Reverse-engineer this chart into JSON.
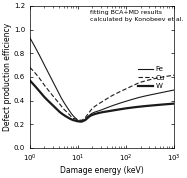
{
  "title_text": "fitting BCA+MD results\ncalculated by Konobeev et al.",
  "xlabel": "Damage energy (keV)",
  "ylabel": "Defect production efficiency",
  "xlim_log": [
    1.0,
    1000.0
  ],
  "ylim": [
    0,
    1.2
  ],
  "yticks": [
    0,
    0.2,
    0.4,
    0.6,
    0.8,
    1.0,
    1.2
  ],
  "background_color": "#ffffff",
  "line_color": "#1a1a1a",
  "legend_entries": [
    "Fe",
    "Cu",
    "W"
  ],
  "Fe_x": [
    1.0,
    1.5,
    2.0,
    3.0,
    4.0,
    5.0,
    6.0,
    7.0,
    8.0,
    9.0,
    10.0,
    11.0,
    12.0,
    13.0,
    14.0,
    15.0,
    16.0,
    17.0,
    20.0,
    30.0,
    50.0,
    100.0,
    200.0,
    500.0,
    1000.0
  ],
  "Fe_y": [
    0.93,
    0.8,
    0.7,
    0.56,
    0.46,
    0.39,
    0.34,
    0.3,
    0.27,
    0.25,
    0.23,
    0.22,
    0.22,
    0.23,
    0.24,
    0.255,
    0.265,
    0.275,
    0.295,
    0.32,
    0.355,
    0.395,
    0.43,
    0.465,
    0.49
  ],
  "Cu_x": [
    1.0,
    1.5,
    2.0,
    3.0,
    4.0,
    5.0,
    6.0,
    7.0,
    8.0,
    9.0,
    10.0,
    11.0,
    12.0,
    13.0,
    14.0,
    15.0,
    16.0,
    17.0,
    20.0,
    30.0,
    50.0,
    100.0,
    200.0,
    500.0,
    1000.0
  ],
  "Cu_y": [
    0.68,
    0.6,
    0.53,
    0.44,
    0.38,
    0.33,
    0.3,
    0.27,
    0.25,
    0.245,
    0.24,
    0.235,
    0.235,
    0.245,
    0.255,
    0.27,
    0.285,
    0.3,
    0.335,
    0.385,
    0.44,
    0.5,
    0.555,
    0.595,
    0.615
  ],
  "W_x": [
    1.0,
    1.5,
    2.0,
    3.0,
    4.0,
    5.0,
    6.0,
    7.0,
    8.0,
    9.0,
    10.0,
    11.0,
    12.0,
    13.0,
    14.0,
    15.0,
    16.0,
    17.0,
    20.0,
    30.0,
    50.0,
    100.0,
    200.0,
    500.0,
    1000.0
  ],
  "W_y": [
    0.57,
    0.49,
    0.43,
    0.36,
    0.31,
    0.28,
    0.26,
    0.245,
    0.235,
    0.23,
    0.225,
    0.225,
    0.225,
    0.23,
    0.235,
    0.245,
    0.255,
    0.265,
    0.28,
    0.3,
    0.315,
    0.335,
    0.35,
    0.365,
    0.375
  ]
}
